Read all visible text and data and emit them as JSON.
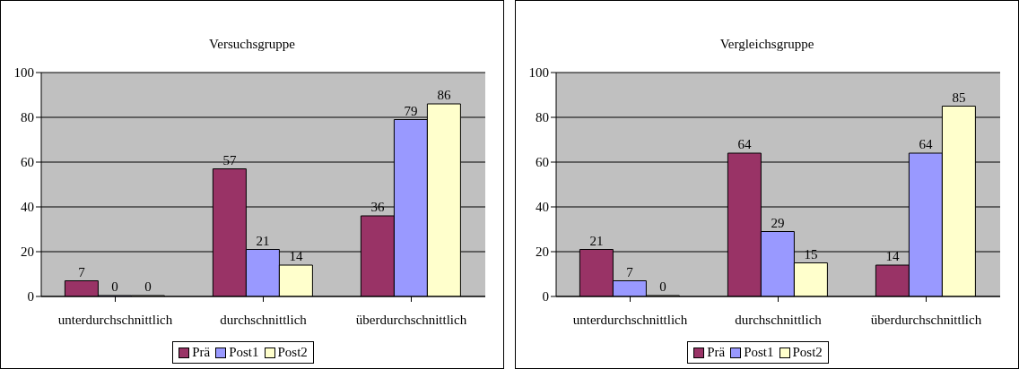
{
  "chart_data": [
    {
      "type": "bar",
      "title": "Versuchsgruppe",
      "categories": [
        "unterdurchschnittlich",
        "durchschnittlich",
        "überdurchschnittlich"
      ],
      "series": [
        {
          "name": "Prä",
          "color": "#993366",
          "values": [
            7,
            57,
            36
          ]
        },
        {
          "name": "Post1",
          "color": "#9999ff",
          "values": [
            0,
            21,
            79
          ]
        },
        {
          "name": "Post2",
          "color": "#ffffcc",
          "values": [
            0,
            14,
            86
          ]
        }
      ],
      "ylim": [
        0,
        100
      ],
      "yticks": [
        0,
        20,
        40,
        60,
        80,
        100
      ],
      "grid": "y",
      "legend": "bottom",
      "data_labels": true
    },
    {
      "type": "bar",
      "title": "Vergleichsgruppe",
      "categories": [
        "unterdurchschnittlich",
        "durchschnittlich",
        "überdurchschnittlich"
      ],
      "series": [
        {
          "name": "Prä",
          "color": "#993366",
          "values": [
            21,
            64,
            14
          ]
        },
        {
          "name": "Post1",
          "color": "#9999ff",
          "values": [
            7,
            29,
            64
          ]
        },
        {
          "name": "Post2",
          "color": "#ffffcc",
          "values": [
            0,
            15,
            85
          ]
        }
      ],
      "ylim": [
        0,
        100
      ],
      "yticks": [
        0,
        20,
        40,
        60,
        80,
        100
      ],
      "grid": "y",
      "legend": "bottom",
      "data_labels": true
    }
  ]
}
